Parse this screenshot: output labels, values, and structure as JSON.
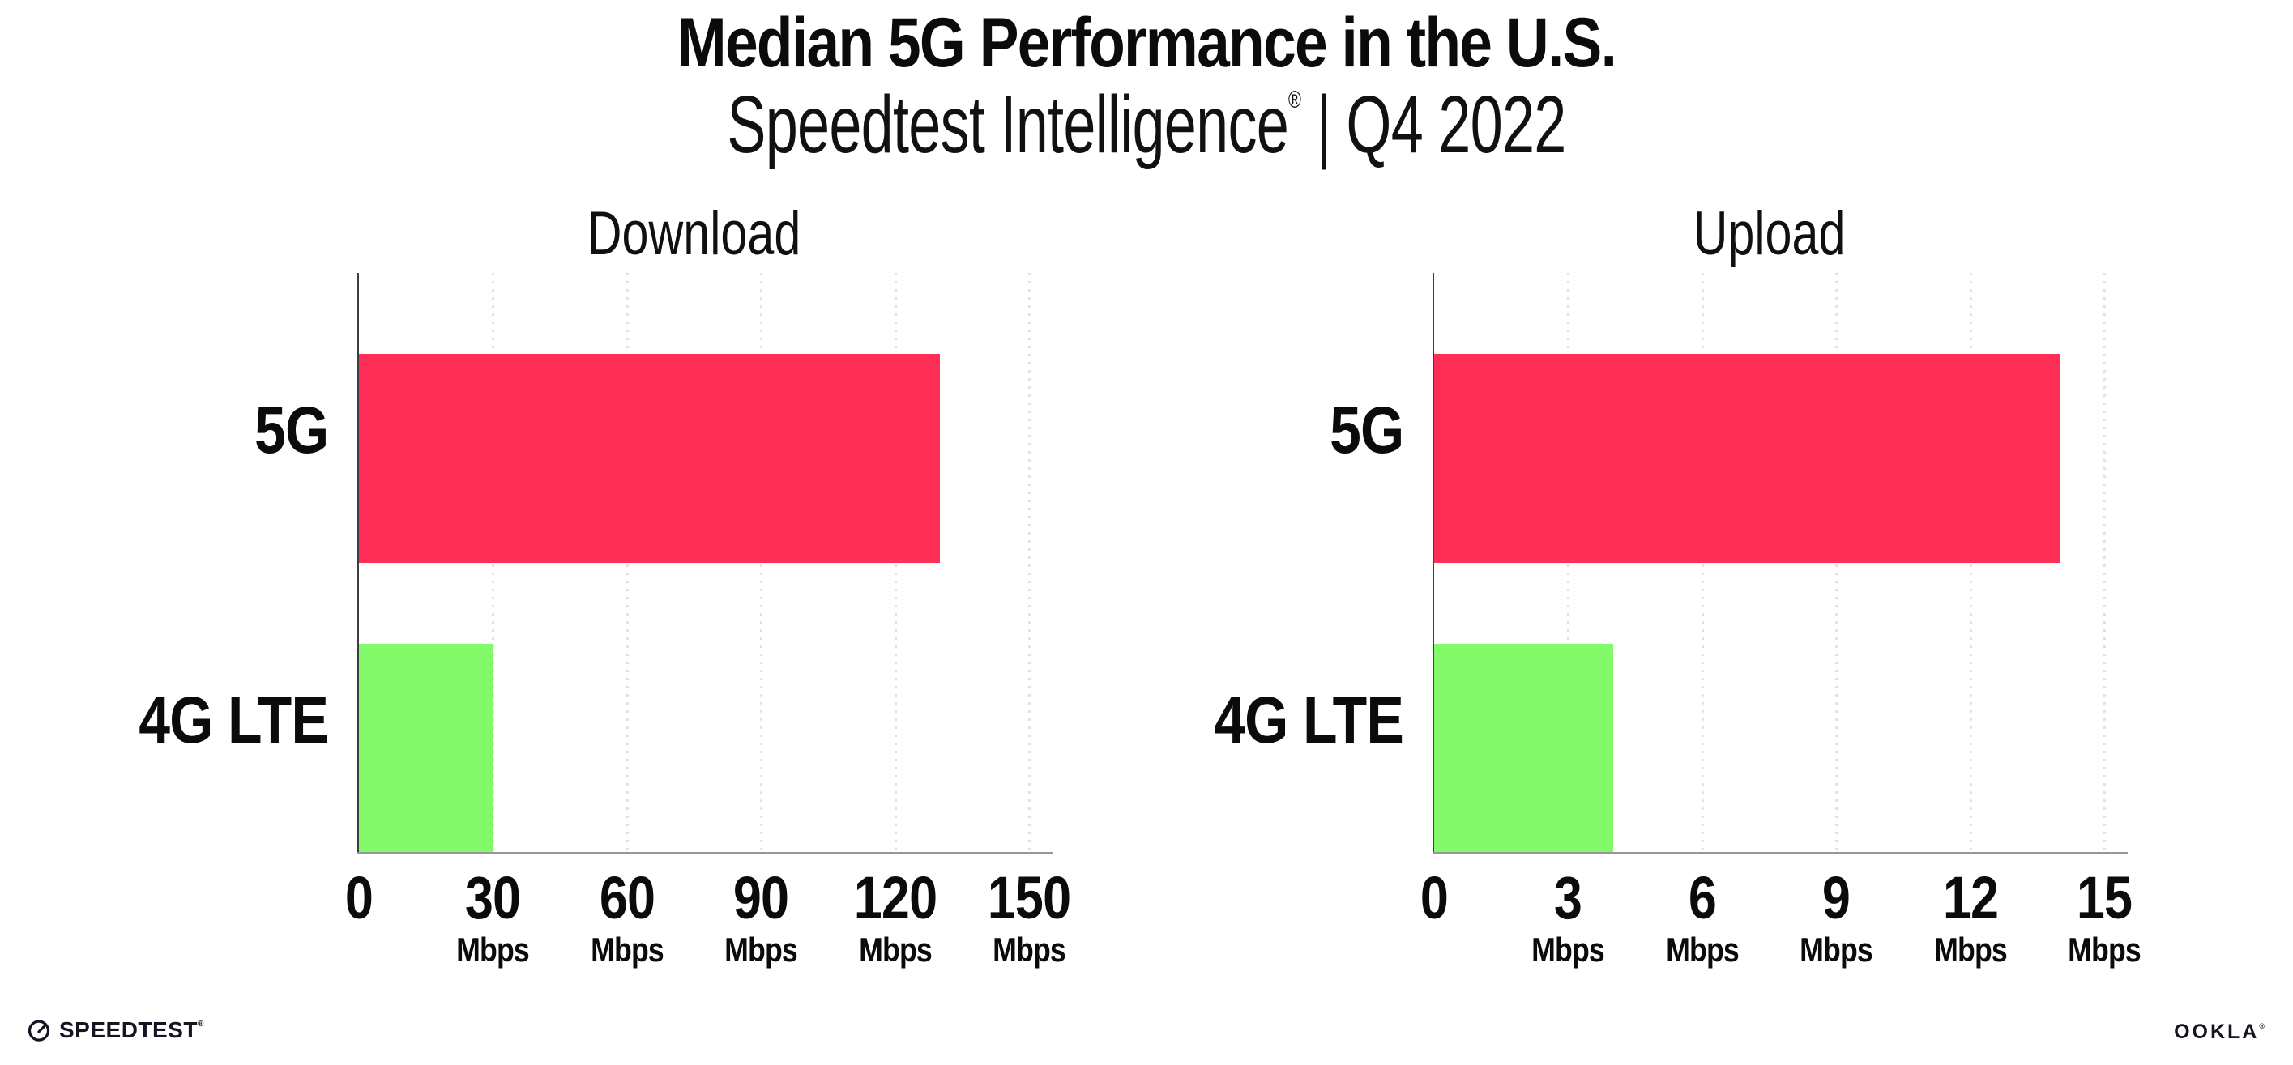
{
  "header": {
    "title": "Median 5G Performance in the U.S.",
    "subtitle_brand": "Speedtest Intelligence",
    "subtitle_registered": "®",
    "subtitle_separator": "|",
    "subtitle_period": "Q4 2022"
  },
  "chart_data": [
    {
      "type": "bar",
      "orientation": "horizontal",
      "title": "Download",
      "categories": [
        "5G",
        "4G LTE"
      ],
      "values": [
        130,
        30
      ],
      "unit": "Mbps",
      "xlim": [
        0,
        150
      ],
      "xticks": [
        0,
        30,
        60,
        90,
        120,
        150
      ],
      "grid": "vertical-dotted",
      "legend": "none",
      "bar_colors": [
        "#FF2E56",
        "#83FA6A"
      ]
    },
    {
      "type": "bar",
      "orientation": "horizontal",
      "title": "Upload",
      "categories": [
        "5G",
        "4G LTE"
      ],
      "values": [
        14,
        4
      ],
      "unit": "Mbps",
      "xlim": [
        0,
        15
      ],
      "xticks": [
        0,
        3,
        6,
        9,
        12,
        15
      ],
      "grid": "vertical-dotted",
      "legend": "none",
      "bar_colors": [
        "#FF2E56",
        "#83FA6A"
      ]
    }
  ],
  "footer": {
    "speedtest_text": "SPEEDTEST",
    "speedtest_mark": "®",
    "ookla_text": "OOKLA",
    "ookla_mark": "®"
  },
  "colors": {
    "bar_5g": "#FF2E56",
    "bar_4g_lte": "#83FA6A",
    "gridline": "#E1E1EB",
    "x_axis": "#96969E",
    "y_axis": "#3D3D47",
    "text": "#0B0B0C"
  }
}
